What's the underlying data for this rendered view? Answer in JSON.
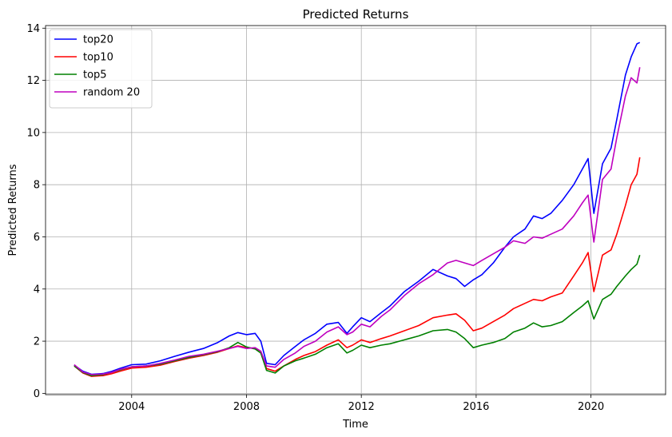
{
  "chart_data": {
    "type": "line",
    "title": "Predicted Returns",
    "xlabel": "Time",
    "ylabel": "Predicted Returns",
    "xlim": [
      2001.0,
      2022.6
    ],
    "ylim": [
      -0.05,
      14.1
    ],
    "xticks": [
      2004,
      2008,
      2012,
      2016,
      2020
    ],
    "yticks": [
      0,
      2,
      4,
      6,
      8,
      10,
      12,
      14
    ],
    "grid": true,
    "legend_position": "top-left",
    "series": [
      {
        "name": "top20",
        "color": "#0000ff",
        "x": [
          2002.0,
          2002.3,
          2002.6,
          2003.0,
          2003.3,
          2003.6,
          2004.0,
          2004.5,
          2005.0,
          2005.5,
          2006.0,
          2006.5,
          2007.0,
          2007.4,
          2007.7,
          2008.0,
          2008.3,
          2008.5,
          2008.7,
          2009.0,
          2009.3,
          2009.7,
          2010.0,
          2010.4,
          2010.8,
          2011.2,
          2011.5,
          2011.7,
          2012.0,
          2012.3,
          2012.7,
          2013.0,
          2013.5,
          2014.0,
          2014.5,
          2015.0,
          2015.3,
          2015.6,
          2015.9,
          2016.2,
          2016.6,
          2017.0,
          2017.3,
          2017.7,
          2018.0,
          2018.3,
          2018.6,
          2019.0,
          2019.4,
          2019.7,
          2019.9,
          2020.1,
          2020.4,
          2020.7,
          2020.9,
          2021.2,
          2021.4,
          2021.6,
          2021.7
        ],
        "y": [
          1.08,
          0.85,
          0.73,
          0.76,
          0.84,
          0.96,
          1.1,
          1.12,
          1.25,
          1.42,
          1.58,
          1.72,
          1.95,
          2.2,
          2.33,
          2.25,
          2.3,
          2.0,
          1.15,
          1.1,
          1.45,
          1.8,
          2.05,
          2.3,
          2.65,
          2.72,
          2.3,
          2.55,
          2.9,
          2.75,
          3.1,
          3.35,
          3.9,
          4.3,
          4.75,
          4.5,
          4.4,
          4.1,
          4.35,
          4.55,
          5.0,
          5.6,
          6.0,
          6.3,
          6.8,
          6.7,
          6.9,
          7.4,
          8.0,
          8.6,
          9.0,
          6.9,
          8.8,
          9.4,
          10.5,
          12.2,
          12.9,
          13.4,
          13.45
        ]
      },
      {
        "name": "top10",
        "color": "#ff0000",
        "x": [
          2002.0,
          2002.3,
          2002.6,
          2003.0,
          2003.3,
          2003.6,
          2004.0,
          2004.5,
          2005.0,
          2005.5,
          2006.0,
          2006.5,
          2007.0,
          2007.4,
          2007.7,
          2008.0,
          2008.3,
          2008.5,
          2008.7,
          2009.0,
          2009.3,
          2009.7,
          2010.0,
          2010.4,
          2010.8,
          2011.2,
          2011.5,
          2011.7,
          2012.0,
          2012.3,
          2012.7,
          2013.0,
          2013.5,
          2014.0,
          2014.5,
          2015.0,
          2015.3,
          2015.6,
          2015.9,
          2016.2,
          2016.6,
          2017.0,
          2017.3,
          2017.7,
          2018.0,
          2018.3,
          2018.6,
          2019.0,
          2019.4,
          2019.7,
          2019.9,
          2020.1,
          2020.4,
          2020.7,
          2020.9,
          2021.2,
          2021.4,
          2021.6,
          2021.7
        ],
        "y": [
          1.05,
          0.78,
          0.65,
          0.68,
          0.75,
          0.85,
          0.97,
          1.0,
          1.08,
          1.22,
          1.35,
          1.45,
          1.58,
          1.72,
          1.82,
          1.75,
          1.72,
          1.55,
          0.95,
          0.85,
          1.05,
          1.3,
          1.45,
          1.6,
          1.85,
          2.05,
          1.75,
          1.85,
          2.05,
          1.95,
          2.1,
          2.2,
          2.4,
          2.6,
          2.9,
          3.0,
          3.05,
          2.8,
          2.4,
          2.5,
          2.75,
          3.0,
          3.25,
          3.45,
          3.6,
          3.55,
          3.7,
          3.85,
          4.5,
          5.0,
          5.4,
          3.9,
          5.3,
          5.5,
          6.1,
          7.2,
          8.0,
          8.4,
          9.05
        ]
      },
      {
        "name": "top5",
        "color": "#008000",
        "x": [
          2002.0,
          2002.3,
          2002.6,
          2003.0,
          2003.3,
          2003.6,
          2004.0,
          2004.5,
          2005.0,
          2005.5,
          2006.0,
          2006.5,
          2007.0,
          2007.4,
          2007.7,
          2008.0,
          2008.3,
          2008.5,
          2008.7,
          2009.0,
          2009.3,
          2009.7,
          2010.0,
          2010.4,
          2010.8,
          2011.2,
          2011.5,
          2011.7,
          2012.0,
          2012.3,
          2012.7,
          2013.0,
          2013.5,
          2014.0,
          2014.5,
          2015.0,
          2015.3,
          2015.6,
          2015.9,
          2016.2,
          2016.6,
          2017.0,
          2017.3,
          2017.7,
          2018.0,
          2018.3,
          2018.6,
          2019.0,
          2019.4,
          2019.7,
          2019.9,
          2020.1,
          2020.4,
          2020.7,
          2020.9,
          2021.2,
          2021.4,
          2021.6,
          2021.7
        ],
        "y": [
          1.05,
          0.8,
          0.68,
          0.72,
          0.8,
          0.9,
          1.02,
          1.05,
          1.12,
          1.25,
          1.38,
          1.48,
          1.6,
          1.75,
          1.95,
          1.78,
          1.7,
          1.55,
          0.88,
          0.78,
          1.05,
          1.25,
          1.35,
          1.5,
          1.75,
          1.9,
          1.55,
          1.65,
          1.85,
          1.75,
          1.85,
          1.9,
          2.05,
          2.2,
          2.4,
          2.45,
          2.35,
          2.1,
          1.75,
          1.85,
          1.95,
          2.1,
          2.35,
          2.5,
          2.7,
          2.55,
          2.6,
          2.75,
          3.1,
          3.35,
          3.55,
          2.85,
          3.6,
          3.8,
          4.1,
          4.5,
          4.75,
          4.95,
          5.3
        ]
      },
      {
        "name": "random 20",
        "color": "#bf00bf",
        "x": [
          2002.0,
          2002.3,
          2002.6,
          2003.0,
          2003.3,
          2003.6,
          2004.0,
          2004.5,
          2005.0,
          2005.5,
          2006.0,
          2006.5,
          2007.0,
          2007.4,
          2007.7,
          2008.0,
          2008.3,
          2008.5,
          2008.7,
          2009.0,
          2009.3,
          2009.7,
          2010.0,
          2010.4,
          2010.8,
          2011.2,
          2011.5,
          2011.7,
          2012.0,
          2012.3,
          2012.7,
          2013.0,
          2013.5,
          2014.0,
          2014.5,
          2015.0,
          2015.3,
          2015.6,
          2015.9,
          2016.2,
          2016.6,
          2017.0,
          2017.3,
          2017.7,
          2018.0,
          2018.3,
          2018.6,
          2019.0,
          2019.4,
          2019.7,
          2019.9,
          2020.1,
          2020.4,
          2020.7,
          2020.9,
          2021.2,
          2021.4,
          2021.6,
          2021.7
        ],
        "y": [
          1.1,
          0.82,
          0.72,
          0.74,
          0.8,
          0.92,
          1.02,
          1.05,
          1.15,
          1.28,
          1.42,
          1.5,
          1.62,
          1.72,
          1.8,
          1.72,
          1.75,
          1.62,
          1.05,
          1.0,
          1.3,
          1.55,
          1.8,
          2.0,
          2.35,
          2.55,
          2.25,
          2.35,
          2.65,
          2.55,
          2.95,
          3.2,
          3.75,
          4.2,
          4.55,
          5.0,
          5.1,
          5.0,
          4.9,
          5.1,
          5.35,
          5.6,
          5.85,
          5.75,
          6.0,
          5.95,
          6.1,
          6.3,
          6.8,
          7.3,
          7.6,
          5.8,
          8.2,
          8.6,
          9.8,
          11.4,
          12.1,
          11.9,
          12.5
        ]
      }
    ]
  }
}
